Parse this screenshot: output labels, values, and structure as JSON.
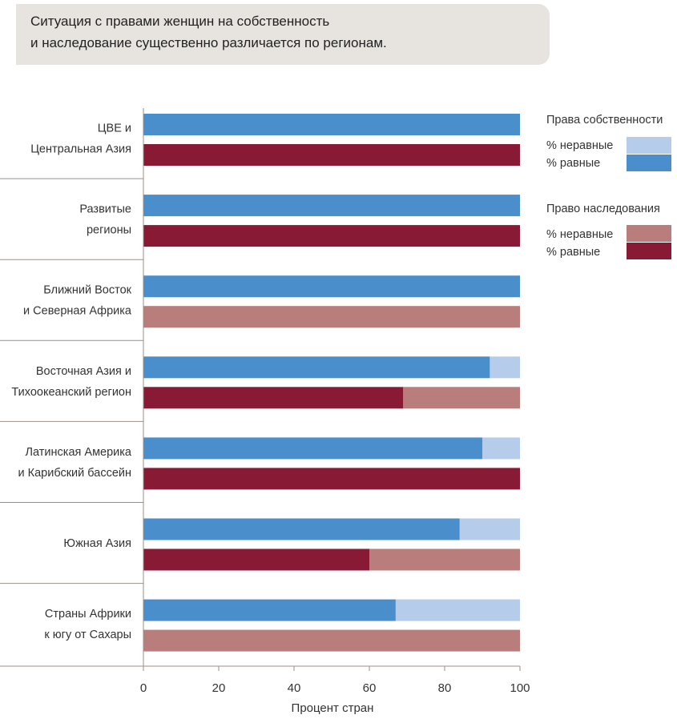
{
  "header": {
    "title_line1": "Ситуация с правами женщин на собственность",
    "title_line2": "и наследование существенно различается по регионам."
  },
  "colors": {
    "property_equal": "#4a8ecb",
    "property_unequal": "#b6cceb",
    "inheritance_equal": "#891a36",
    "inheritance_unequal": "#b97d7b",
    "header_bg": "#e7e3df"
  },
  "legend": {
    "property_title": "Права собственности",
    "inheritance_title": "Право наследования",
    "unequal": "% неравные",
    "equal": "% равные"
  },
  "chart_data": {
    "type": "bar",
    "orientation": "horizontal",
    "stacked": true,
    "categories": [
      [
        "ЦВЕ и",
        "Центральная Азия"
      ],
      [
        "Развитые",
        "регионы"
      ],
      [
        "Ближний Восток",
        "и Северная Африка"
      ],
      [
        "Восточная Азия и",
        "Тихоокеанский регион"
      ],
      [
        "Латинская Америка",
        "и Карибский бассейн"
      ],
      [
        "Южная Азия"
      ],
      [
        "Страны Африки",
        "к югу от Сахары"
      ]
    ],
    "series": [
      {
        "name": "Права собственности % равные",
        "group": "property",
        "kind": "equal",
        "values": [
          100,
          100,
          100,
          92,
          90,
          84,
          67
        ]
      },
      {
        "name": "Права собственности % неравные",
        "group": "property",
        "kind": "unequal",
        "values": [
          0,
          0,
          0,
          8,
          10,
          16,
          33
        ]
      },
      {
        "name": "Право наследования % равные",
        "group": "inheritance",
        "kind": "equal",
        "values": [
          100,
          100,
          0,
          69,
          100,
          60,
          0
        ]
      },
      {
        "name": "Право наследования % неравные",
        "group": "inheritance",
        "kind": "unequal",
        "values": [
          0,
          0,
          100,
          31,
          0,
          40,
          100
        ]
      }
    ],
    "xlabel": "Процент стран",
    "xlim": [
      0,
      100
    ],
    "xticks": [
      "0",
      "20",
      "40",
      "60",
      "80",
      "100"
    ],
    "grid": false,
    "legend_position": "top-right"
  }
}
